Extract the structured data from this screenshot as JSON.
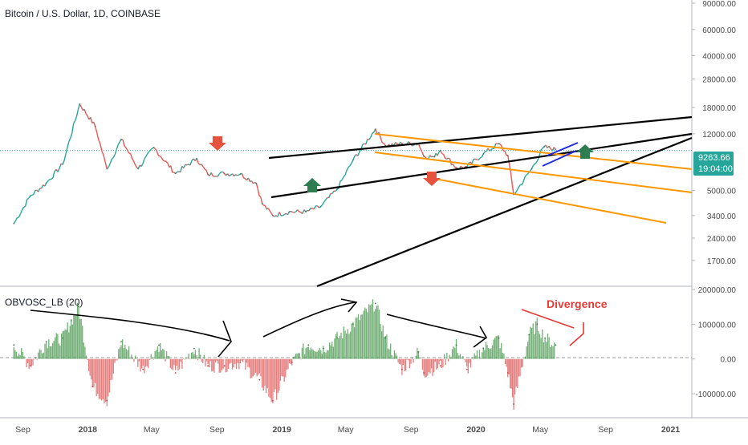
{
  "title": "Bitcoin / U.S. Dollar, 1D, COINBASE",
  "indicator": "OBVOSC_LB (20)",
  "annotation": "Divergence",
  "current_price": "9263.66",
  "countdown": "19:04:00",
  "colors": {
    "up": "#26a69a",
    "down": "#ef5350",
    "osc_up": "#5aa05f",
    "osc_down": "#e06666",
    "trend_black": "#000000",
    "trend_orange": "#ff9800",
    "trend_blue": "#1f2be0",
    "arrow_green": "#2e7d51",
    "arrow_red": "#e5533f",
    "divergence": "#e53935",
    "price_line": "#26a69a"
  },
  "chart_data": [
    {
      "type": "line",
      "title": "Bitcoin / U.S. Dollar, 1D, COINBASE",
      "scale": "log",
      "ylim": [
        1200,
        90000
      ],
      "y_ticks": [
        "90000.00",
        "60000.00",
        "40000.00",
        "28000.00",
        "18000.00",
        "12000.00",
        "9263.66",
        "5000.00",
        "3400.00",
        "2400.00",
        "1700.00"
      ],
      "x_ticks": [
        "Sep",
        "2018",
        "May",
        "Sep",
        "2019",
        "May",
        "Sep",
        "2020",
        "May",
        "Sep",
        "2021"
      ],
      "x": [
        "2017-08-15",
        "2017-09-15",
        "2017-10-15",
        "2017-11-15",
        "2017-12-17",
        "2018-01-15",
        "2018-02-06",
        "2018-03-05",
        "2018-04-06",
        "2018-05-05",
        "2018-06-15",
        "2018-07-25",
        "2018-08-15",
        "2018-09-15",
        "2018-10-15",
        "2018-11-14",
        "2018-11-25",
        "2018-12-15",
        "2019-01-15",
        "2019-02-15",
        "2019-03-15",
        "2019-04-15",
        "2019-05-15",
        "2019-06-26",
        "2019-07-15",
        "2019-08-15",
        "2019-09-15",
        "2019-09-25",
        "2019-10-15",
        "2019-10-26",
        "2019-11-25",
        "2019-12-15",
        "2020-01-15",
        "2020-02-13",
        "2020-03-01",
        "2020-03-12",
        "2020-04-15",
        "2020-05-08",
        "2020-05-30"
      ],
      "series": [
        {
          "values": [
            3000,
            4600,
            5600,
            7500,
            19000,
            13500,
            7000,
            11000,
            7000,
            9700,
            6500,
            8200,
            6400,
            6500,
            6450,
            5600,
            4100,
            3400,
            3600,
            3600,
            3900,
            5100,
            8000,
            12900,
            10000,
            10300,
            10300,
            8500,
            8400,
            9300,
            7100,
            7200,
            8800,
            10300,
            8600,
            4700,
            7000,
            9800,
            9400
          ]
        }
      ],
      "markers": {
        "up_arrow_dates": [
          "2019-02-20",
          "2020-05-25"
        ],
        "down_arrow_dates": [
          "2018-05-10",
          "2019-10-01"
        ]
      },
      "current_value": 9263.66
    },
    {
      "type": "area",
      "title": "OBVOSC_LB (20)",
      "ylim": [
        -160000,
        200000
      ],
      "y_ticks": [
        "200000.00",
        "100000.00",
        "0.00",
        "-100000.00"
      ],
      "annotations": [
        "Divergence"
      ],
      "x": [
        "2017-08-15",
        "2017-09-15",
        "2017-10-15",
        "2017-11-15",
        "2017-12-01",
        "2017-12-15",
        "2018-01-10",
        "2018-02-06",
        "2018-03-05",
        "2018-04-15",
        "2018-05-15",
        "2018-06-15",
        "2018-07-20",
        "2018-08-15",
        "2018-09-15",
        "2018-10-15",
        "2018-11-20",
        "2018-12-15",
        "2019-01-20",
        "2019-02-20",
        "2019-03-20",
        "2019-04-15",
        "2019-05-15",
        "2019-06-26",
        "2019-07-15",
        "2019-08-15",
        "2019-09-15",
        "2019-09-25",
        "2019-10-26",
        "2019-11-25",
        "2019-12-15",
        "2020-01-15",
        "2020-02-13",
        "2020-03-01",
        "2020-03-12",
        "2020-04-10",
        "2020-04-25",
        "2020-05-10",
        "2020-05-30"
      ],
      "values": [
        40000,
        -20000,
        50000,
        60000,
        110000,
        150000,
        -80000,
        -120000,
        50000,
        -30000,
        40000,
        -40000,
        30000,
        -20000,
        -20000,
        -10000,
        -60000,
        -120000,
        -10000,
        40000,
        30000,
        60000,
        100000,
        160000,
        60000,
        -30000,
        20000,
        -40000,
        -20000,
        40000,
        -30000,
        30000,
        60000,
        -40000,
        -130000,
        70000,
        100000,
        60000,
        40000
      ]
    }
  ]
}
